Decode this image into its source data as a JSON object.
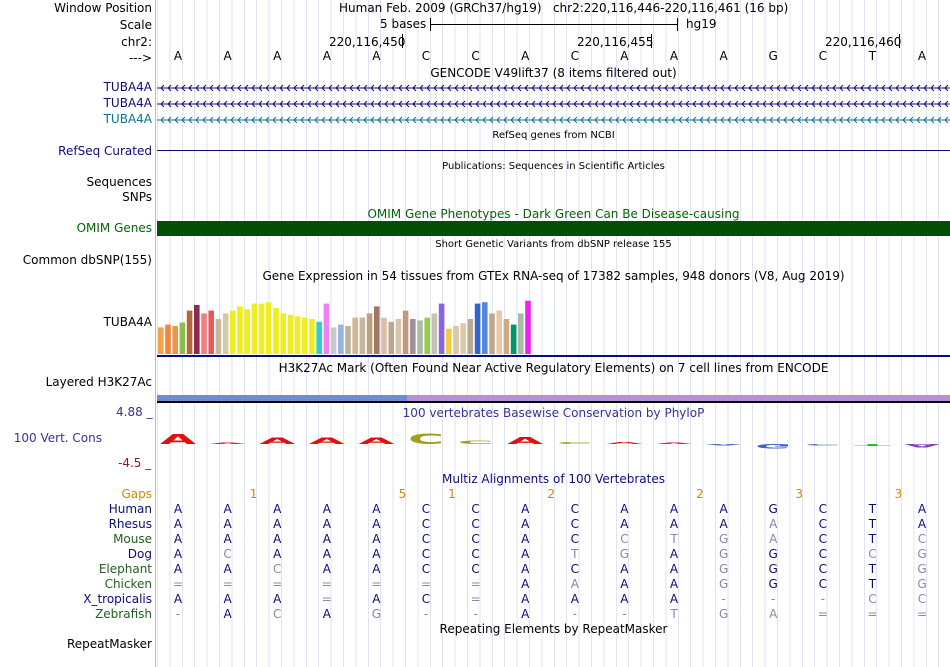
{
  "header": {
    "window_position_label": "Window Position",
    "window_position_value": "Human Feb. 2009 (GRCh37/hg19)   chr2:220,116,446-220,116,461 (16 bp)",
    "scale_label": "Scale",
    "scale_text": "5 bases",
    "scale_assembly": "hg19",
    "chr_label": "chr2:",
    "coords": [
      "220,116,450",
      "220,116,455",
      "220,116,460"
    ],
    "strand_label": "--->",
    "bases": [
      "A",
      "A",
      "A",
      "A",
      "A",
      "C",
      "C",
      "A",
      "C",
      "A",
      "A",
      "A",
      "G",
      "C",
      "T",
      "A"
    ]
  },
  "tracks": {
    "gencode_title": "GENCODE V49lift37 (8 items filtered out)",
    "gencode_items": [
      {
        "name": "TUBA4A",
        "color": "#0c0c78"
      },
      {
        "name": "TUBA4A",
        "color": "#0c0c78"
      },
      {
        "name": "TUBA4A",
        "color": "#0c7090"
      }
    ],
    "refseq_title": "RefSeq genes from NCBI",
    "refseq_label": "RefSeq Curated",
    "pubs_title": "Publications: Sequences in Scientific Articles",
    "pubs_labels": [
      "Sequences",
      "SNPs"
    ],
    "omim_title": "OMIM Gene Phenotypes - Dark Green Can Be Disease-causing",
    "omim_label": "OMIM Genes",
    "dbsnp_title": "Short Genetic Variants from dbSNP release 155",
    "dbsnp_label": "Common dbSNP(155)",
    "gtex_title": "Gene Expression in 54 tissues from GTEx RNA-seq of 17382 samples, 948 donors (V8, Aug 2019)",
    "gtex_label": "TUBA4A",
    "h3k27ac_title": "H3K27Ac Mark (Often Found Near Active Regulatory Elements) on 7 cell lines from ENCODE",
    "h3k27ac_label": "Layered H3K27Ac",
    "cons_title": "100 vertebrates Basewise Conservation by PhyloP",
    "cons_label": "100 Vert. Cons",
    "cons_max": "4.88 _",
    "cons_min": "-4.5 _",
    "multiz_title": "Multiz Alignments of 100 Vertebrates",
    "gaps_label": "Gaps",
    "repeat_title": "Repeating Elements by RepeatMasker",
    "repeat_label": "RepeatMasker"
  },
  "gtex_bars": [
    {
      "v": 0.38,
      "c": "#f7a14a"
    },
    {
      "v": 0.42,
      "c": "#f2873c"
    },
    {
      "v": 0.4,
      "c": "#f0954c"
    },
    {
      "v": 0.45,
      "c": "#8fbc4a"
    },
    {
      "v": 0.62,
      "c": "#b5673d"
    },
    {
      "v": 0.7,
      "c": "#8c2b4f"
    },
    {
      "v": 0.58,
      "c": "#f07f7f"
    },
    {
      "v": 0.62,
      "c": "#e85a5a"
    },
    {
      "v": 0.5,
      "c": "#c8b8a0"
    },
    {
      "v": 0.58,
      "c": "#d4c8a8"
    },
    {
      "v": 0.62,
      "c": "#eeee22"
    },
    {
      "v": 0.68,
      "c": "#eeee22"
    },
    {
      "v": 0.64,
      "c": "#eeee22"
    },
    {
      "v": 0.72,
      "c": "#eeee22"
    },
    {
      "v": 0.72,
      "c": "#eeee22"
    },
    {
      "v": 0.74,
      "c": "#eeee22"
    },
    {
      "v": 0.66,
      "c": "#eeee22"
    },
    {
      "v": 0.58,
      "c": "#eeee22"
    },
    {
      "v": 0.56,
      "c": "#eeee22"
    },
    {
      "v": 0.54,
      "c": "#eeee22"
    },
    {
      "v": 0.52,
      "c": "#eeee22"
    },
    {
      "v": 0.5,
      "c": "#eeee22"
    },
    {
      "v": 0.46,
      "c": "#33cccc"
    },
    {
      "v": 0.72,
      "c": "#ee82ee"
    },
    {
      "v": 0.38,
      "c": "#c8c8c8"
    },
    {
      "v": 0.42,
      "c": "#9ab4e0"
    },
    {
      "v": 0.4,
      "c": "#bcb0a0"
    },
    {
      "v": 0.52,
      "c": "#d4b896"
    },
    {
      "v": 0.52,
      "c": "#c8b49a"
    },
    {
      "v": 0.58,
      "c": "#bca080"
    },
    {
      "v": 0.68,
      "c": "#a07860"
    },
    {
      "v": 0.52,
      "c": "#d8c0a8"
    },
    {
      "v": 0.46,
      "c": "#bca890"
    },
    {
      "v": 0.5,
      "c": "#d8c4aa"
    },
    {
      "v": 0.62,
      "c": "#c09880"
    },
    {
      "v": 0.5,
      "c": "#a09098"
    },
    {
      "v": 0.48,
      "c": "#aabbaa"
    },
    {
      "v": 0.52,
      "c": "#99cc44"
    },
    {
      "v": 0.58,
      "c": "#c8c0b0"
    },
    {
      "v": 0.72,
      "c": "#8866dd"
    },
    {
      "v": 0.36,
      "c": "#eecc44"
    },
    {
      "v": 0.4,
      "c": "#d8c8a8"
    },
    {
      "v": 0.44,
      "c": "#e0c8a8"
    },
    {
      "v": 0.5,
      "c": "#bca890"
    },
    {
      "v": 0.72,
      "c": "#3366cc"
    },
    {
      "v": 0.74,
      "c": "#5588dd"
    },
    {
      "v": 0.58,
      "c": "#bca890"
    },
    {
      "v": 0.62,
      "c": "#e8c8a8"
    },
    {
      "v": 0.5,
      "c": "#ccaa88"
    },
    {
      "v": 0.42,
      "c": "#009966"
    },
    {
      "v": 0.58,
      "c": "#aabbaa"
    },
    {
      "v": 0.76,
      "c": "#ee22ee"
    }
  ],
  "cons_letters": [
    {
      "b": "A",
      "h": 9,
      "c": "#e01010",
      "up": true
    },
    {
      "b": "A",
      "h": 1,
      "c": "#e01010",
      "up": true
    },
    {
      "b": "A",
      "h": 6,
      "c": "#e01010",
      "up": true
    },
    {
      "b": "A",
      "h": 6,
      "c": "#e01010",
      "up": true
    },
    {
      "b": "A",
      "h": 6,
      "c": "#e01010",
      "up": true
    },
    {
      "b": "C",
      "h": 10,
      "c": "#a0a020",
      "up": true
    },
    {
      "b": "C",
      "h": 3,
      "c": "#a0a020",
      "up": true
    },
    {
      "b": "A",
      "h": 7,
      "c": "#e01010",
      "up": true
    },
    {
      "b": "C",
      "h": 2,
      "c": "#a0a020",
      "up": true
    },
    {
      "b": "A",
      "h": 2,
      "c": "#e01010",
      "up": true
    },
    {
      "b": "A",
      "h": 1,
      "c": "#e01010",
      "up": true
    },
    {
      "b": "A",
      "h": 1,
      "c": "#4060c0",
      "up": false
    },
    {
      "b": "G",
      "h": 4,
      "c": "#4060c0",
      "up": false
    },
    {
      "b": "C",
      "h": 0,
      "c": "#4060c0",
      "up": false
    },
    {
      "b": "T",
      "h": 2,
      "c": "#20c020",
      "up": false
    },
    {
      "b": "A",
      "h": 3,
      "c": "#8040c0",
      "up": false
    }
  ],
  "gaps": [
    "",
    "1",
    "",
    "",
    "5",
    "1",
    "",
    "2",
    "",
    "",
    "2",
    "",
    "3",
    "",
    "3",
    ""
  ],
  "species": [
    {
      "name": "Human",
      "color": "#0c0c78",
      "seq": [
        "A",
        "A",
        "A",
        "A",
        "A",
        "C",
        "C",
        "A",
        "C",
        "A",
        "A",
        "A",
        "G",
        "C",
        "T",
        "A"
      ],
      "dim": []
    },
    {
      "name": "Rhesus",
      "color": "#0c0c78",
      "seq": [
        "A",
        "A",
        "A",
        "A",
        "A",
        "C",
        "C",
        "A",
        "C",
        "A",
        "A",
        "A",
        "A",
        "C",
        "T",
        "A"
      ],
      "dim": [
        12
      ]
    },
    {
      "name": "Mouse",
      "color": "#206020",
      "seq": [
        "A",
        "A",
        "A",
        "A",
        "A",
        "C",
        "C",
        "A",
        "C",
        "C",
        "T",
        "G",
        "A",
        "C",
        "T",
        "C"
      ],
      "dim": [
        9,
        10,
        11,
        12,
        15
      ]
    },
    {
      "name": "Dog",
      "color": "#0c0c78",
      "seq": [
        "A",
        "C",
        "A",
        "A",
        "A",
        "C",
        "C",
        "A",
        "T",
        "G",
        "A",
        "G",
        "G",
        "C",
        "C",
        "G"
      ],
      "dim": [
        1,
        8,
        9,
        11,
        14,
        15
      ]
    },
    {
      "name": "Elephant",
      "color": "#206020",
      "seq": [
        "A",
        "A",
        "C",
        "A",
        "A",
        "C",
        "C",
        "A",
        "C",
        "A",
        "A",
        "G",
        "G",
        "C",
        "T",
        "G"
      ],
      "dim": [
        2,
        11,
        15
      ]
    },
    {
      "name": "Chicken",
      "color": "#206020",
      "seq": [
        "=",
        "=",
        "=",
        "=",
        "=",
        "=",
        "=",
        "A",
        "A",
        "A",
        "A",
        "G",
        "G",
        "C",
        "T",
        "G"
      ],
      "dim": [
        0,
        1,
        2,
        3,
        4,
        5,
        6,
        8,
        11,
        15
      ]
    },
    {
      "name": "X_tropicalis",
      "color": "#0c0c78",
      "seq": [
        "A",
        "A",
        "A",
        "=",
        "A",
        "C",
        "=",
        "A",
        "A",
        "A",
        "A",
        "-",
        "-",
        "-",
        "C",
        "C"
      ],
      "dim": [
        3,
        6,
        11,
        12,
        13,
        14,
        15
      ]
    },
    {
      "name": "Zebrafish",
      "color": "#206020",
      "seq": [
        "-",
        "A",
        "C",
        "A",
        "G",
        "-",
        "-",
        "A",
        "-",
        "-",
        "T",
        "G",
        "A",
        "=",
        "=",
        "="
      ],
      "dim": [
        0,
        2,
        4,
        5,
        6,
        8,
        9,
        10,
        11,
        12,
        13,
        14,
        15
      ]
    }
  ]
}
